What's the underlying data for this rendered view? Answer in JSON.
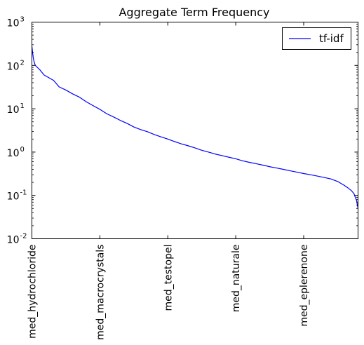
{
  "chart_data": {
    "type": "line",
    "title": "Aggregate Term Frequency",
    "xlabel": "",
    "ylabel": "",
    "y_scale": "log",
    "ylim": [
      0.01,
      1000
    ],
    "xlim": [
      0,
      480
    ],
    "grid": false,
    "legend": {
      "placement": "top-right",
      "entries": [
        "tf-idf"
      ]
    },
    "y_ticks": [
      {
        "value": 1000,
        "base": "10",
        "exp": "3"
      },
      {
        "value": 100,
        "base": "10",
        "exp": "2"
      },
      {
        "value": 10,
        "base": "10",
        "exp": "1"
      },
      {
        "value": 1,
        "base": "10",
        "exp": "0"
      },
      {
        "value": 0.1,
        "base": "10",
        "exp": "-1"
      },
      {
        "value": 0.01,
        "base": "10",
        "exp": "-2"
      }
    ],
    "x_ticks": [
      {
        "value": 0,
        "label": "med_hydrochloride"
      },
      {
        "value": 100,
        "label": "med_macrocrystals"
      },
      {
        "value": 200,
        "label": "med_testopel"
      },
      {
        "value": 300,
        "label": "med_naturale"
      },
      {
        "value": 400,
        "label": "med_eplerenone"
      }
    ],
    "series": [
      {
        "name": "tf-idf",
        "color": "#0000ff",
        "x": [
          0,
          1,
          2,
          3,
          5,
          8,
          12,
          18,
          25,
          32,
          40,
          50,
          60,
          70,
          80,
          90,
          100,
          110,
          120,
          130,
          140,
          150,
          160,
          170,
          180,
          190,
          200,
          210,
          220,
          230,
          240,
          250,
          260,
          270,
          280,
          290,
          300,
          310,
          320,
          330,
          340,
          350,
          360,
          370,
          380,
          390,
          400,
          410,
          420,
          430,
          440,
          450,
          460,
          465,
          470,
          474,
          476,
          478,
          479,
          480
        ],
        "y": [
          280,
          200,
          150,
          125,
          100,
          90,
          78,
          60,
          52,
          45,
          32,
          27,
          22,
          18.5,
          14.5,
          11.8,
          9.7,
          7.7,
          6.5,
          5.4,
          4.6,
          3.8,
          3.3,
          2.95,
          2.55,
          2.25,
          2.0,
          1.75,
          1.55,
          1.4,
          1.25,
          1.1,
          1.0,
          0.9,
          0.83,
          0.76,
          0.7,
          0.63,
          0.58,
          0.54,
          0.5,
          0.46,
          0.43,
          0.4,
          0.37,
          0.345,
          0.32,
          0.3,
          0.28,
          0.26,
          0.24,
          0.21,
          0.17,
          0.15,
          0.13,
          0.11,
          0.09,
          0.075,
          0.06,
          0.05
        ]
      }
    ]
  }
}
